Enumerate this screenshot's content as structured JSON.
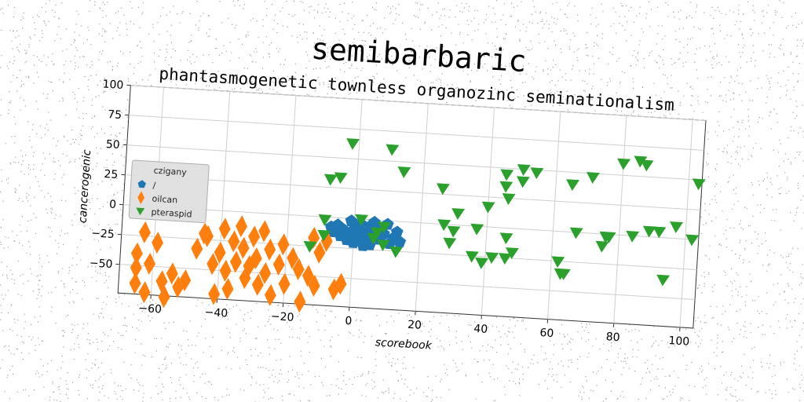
{
  "chart_data": {
    "type": "scatter",
    "title": "semibarbaric",
    "subtitle": "phantasmogenetic townless organozinc seminationalism",
    "xlabel": "scorebook",
    "ylabel": "cancerogenic",
    "xlim": [
      -70,
      104
    ],
    "ylim": [
      -74,
      100
    ],
    "xticks": [
      -60,
      -40,
      -20,
      0,
      20,
      40,
      60,
      80,
      100
    ],
    "yticks": [
      -50,
      -25,
      0,
      25,
      50,
      75,
      100
    ],
    "grid": true,
    "legend": {
      "title": "czigany",
      "position": "center-left"
    },
    "series": [
      {
        "name": "/",
        "marker": "pentagon",
        "color": "#1f77b4",
        "points": [
          [
            -7,
            -8
          ],
          [
            -6,
            -12
          ],
          [
            -5,
            -6
          ],
          [
            -4,
            -15
          ],
          [
            -3,
            -10
          ],
          [
            -2,
            -18
          ],
          [
            -1,
            -13
          ],
          [
            0,
            -6
          ],
          [
            0,
            -20
          ],
          [
            1,
            -14
          ],
          [
            2,
            -9
          ],
          [
            3,
            -17
          ],
          [
            4,
            -11
          ],
          [
            5,
            -5
          ],
          [
            5,
            -21
          ],
          [
            6,
            -14
          ],
          [
            7,
            -8
          ],
          [
            8,
            -16
          ],
          [
            9,
            -11
          ],
          [
            10,
            -3
          ],
          [
            11,
            -19
          ],
          [
            12,
            -14
          ],
          [
            13,
            -9
          ],
          [
            14,
            -17
          ],
          [
            3,
            -22
          ],
          [
            -1,
            -2
          ],
          [
            6,
            -2
          ],
          [
            2,
            -4
          ]
        ]
      },
      {
        "name": "oilcan",
        "marker": "thin_diamond",
        "color": "#ff7f0e",
        "points": [
          [
            -65,
            -40
          ],
          [
            -65,
            -52
          ],
          [
            -65,
            -65
          ],
          [
            -63,
            -22
          ],
          [
            -62,
            -72
          ],
          [
            -61,
            -48
          ],
          [
            -59,
            -30
          ],
          [
            -57,
            -62
          ],
          [
            -56,
            -75
          ],
          [
            -54,
            -55
          ],
          [
            -52,
            -66
          ],
          [
            -50,
            -60
          ],
          [
            -47,
            -33
          ],
          [
            -45,
            -20
          ],
          [
            -44,
            -22
          ],
          [
            -42,
            -45
          ],
          [
            -41,
            -70
          ],
          [
            -40,
            -35
          ],
          [
            -39,
            -15
          ],
          [
            -38,
            -50
          ],
          [
            -37,
            -65
          ],
          [
            -36,
            -25
          ],
          [
            -35,
            -42
          ],
          [
            -34,
            -12
          ],
          [
            -33,
            -30
          ],
          [
            -32,
            -55
          ],
          [
            -31,
            -45
          ],
          [
            -30,
            -20
          ],
          [
            -29,
            -38
          ],
          [
            -28,
            -60
          ],
          [
            -27,
            -15
          ],
          [
            -26,
            -50
          ],
          [
            -25,
            -30
          ],
          [
            -24,
            -68
          ],
          [
            -22,
            -42
          ],
          [
            -21,
            -25
          ],
          [
            -20,
            -58
          ],
          [
            -18,
            -36
          ],
          [
            -16,
            -45
          ],
          [
            -15,
            -72
          ],
          [
            -13,
            -50
          ],
          [
            -12,
            -18
          ],
          [
            -11,
            -58
          ],
          [
            -10,
            -30
          ],
          [
            -8,
            -20
          ],
          [
            -5,
            -60
          ],
          [
            -3,
            -55
          ]
        ]
      },
      {
        "name": "pteraspid",
        "marker": "triangle_down",
        "color": "#2ca02c",
        "points": [
          [
            -13,
            -25
          ],
          [
            -9,
            -2
          ],
          [
            -9,
            -15
          ],
          [
            -8,
            32
          ],
          [
            -5,
            34
          ],
          [
            -2,
            63
          ],
          [
            2,
            0
          ],
          [
            6,
            -15
          ],
          [
            7,
            -10
          ],
          [
            9,
            -5
          ],
          [
            9,
            -20
          ],
          [
            10,
            60
          ],
          [
            13,
            -25
          ],
          [
            14,
            42
          ],
          [
            26,
            30
          ],
          [
            27,
            0
          ],
          [
            29,
            -15
          ],
          [
            30,
            -5
          ],
          [
            31,
            10
          ],
          [
            36,
            -25
          ],
          [
            37,
            -2
          ],
          [
            39,
            -30
          ],
          [
            40,
            17
          ],
          [
            42,
            -25
          ],
          [
            45,
            45
          ],
          [
            45,
            35
          ],
          [
            46,
            -8
          ],
          [
            46,
            -25
          ],
          [
            46,
            25
          ],
          [
            48,
            -20
          ],
          [
            50,
            50
          ],
          [
            50,
            40
          ],
          [
            54,
            48
          ],
          [
            62,
            -25
          ],
          [
            63,
            -35
          ],
          [
            64,
            -35
          ],
          [
            65,
            40
          ],
          [
            67,
            0
          ],
          [
            71,
            47
          ],
          [
            75,
            -10
          ],
          [
            76,
            -2
          ],
          [
            77,
            -2
          ],
          [
            80,
            60
          ],
          [
            84,
            0
          ],
          [
            85,
            63
          ],
          [
            87,
            60
          ],
          [
            89,
            5
          ],
          [
            92,
            5
          ],
          [
            94,
            -35
          ],
          [
            97,
            10
          ],
          [
            102,
            0
          ],
          [
            103,
            47
          ]
        ]
      }
    ]
  }
}
